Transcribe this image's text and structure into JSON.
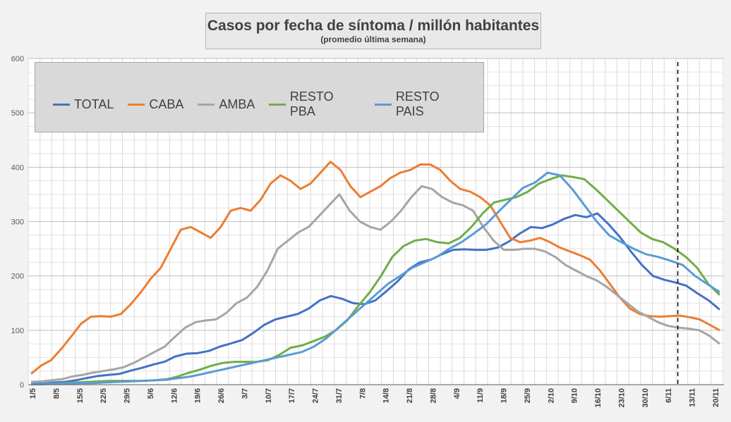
{
  "chart_data": {
    "type": "line",
    "title": "Casos por fecha de síntoma / millón habitantes",
    "subtitle": "(promedio última semana)",
    "ylim": [
      0,
      600
    ],
    "y_ticks": [
      0,
      100,
      200,
      300,
      400,
      500,
      600
    ],
    "x_tick_labels": [
      "1/5",
      "8/5",
      "15/5",
      "22/5",
      "29/5",
      "5/6",
      "12/6",
      "19/6",
      "26/6",
      "3/7",
      "10/7",
      "17/7",
      "24/7",
      "31/7",
      "7/8",
      "14/8",
      "21/8",
      "28/8",
      "4/9",
      "11/9",
      "18/9",
      "25/9",
      "2/10",
      "9/10",
      "16/10",
      "23/10",
      "30/10",
      "6/11",
      "13/11",
      "20/11"
    ],
    "grid": true,
    "legend_position": "top-left",
    "vertical_marker_label_index": 27.4,
    "series": [
      {
        "name": "TOTAL",
        "color": "#4472c4",
        "values": [
          2,
          2,
          4,
          5,
          8,
          12,
          16,
          18,
          20,
          26,
          31,
          37,
          42,
          52,
          57,
          58,
          62,
          70,
          76,
          82,
          95,
          110,
          120,
          125,
          130,
          140,
          155,
          163,
          158,
          150,
          148,
          155,
          172,
          190,
          212,
          225,
          230,
          240,
          248,
          249,
          248,
          248,
          252,
          263,
          278,
          290,
          288,
          295,
          305,
          312,
          308,
          315,
          295,
          272,
          245,
          220,
          200,
          193,
          188,
          182,
          168,
          155,
          138
        ]
      },
      {
        "name": "CABA",
        "color": "#ed7d31",
        "values": [
          20,
          35,
          45,
          65,
          88,
          112,
          125,
          126,
          125,
          130,
          148,
          170,
          195,
          215,
          250,
          285,
          290,
          280,
          270,
          290,
          320,
          325,
          320,
          340,
          370,
          385,
          375,
          360,
          370,
          390,
          410,
          395,
          365,
          345,
          355,
          365,
          380,
          390,
          395,
          405,
          405,
          395,
          375,
          360,
          355,
          345,
          330,
          300,
          270,
          262,
          265,
          270,
          262,
          252,
          245,
          238,
          230,
          210,
          185,
          160,
          140,
          130,
          126,
          125,
          126,
          127,
          124,
          120,
          110,
          100
        ]
      },
      {
        "name": "AMBA",
        "color": "#a5a5a5",
        "values": [
          5,
          6,
          8,
          10,
          15,
          18,
          22,
          25,
          28,
          32,
          40,
          50,
          60,
          70,
          88,
          105,
          115,
          118,
          120,
          132,
          150,
          160,
          180,
          210,
          250,
          265,
          280,
          290,
          310,
          330,
          350,
          320,
          300,
          290,
          285,
          300,
          320,
          345,
          365,
          360,
          345,
          335,
          330,
          320,
          290,
          265,
          248,
          248,
          250,
          250,
          245,
          235,
          220,
          210,
          200,
          192,
          180,
          165,
          150,
          135,
          125,
          115,
          108,
          105,
          103,
          100,
          90,
          75
        ]
      },
      {
        "name": "RESTO PBA",
        "color": "#70ad47",
        "values": [
          1,
          1,
          2,
          3,
          4,
          5,
          6,
          7,
          7,
          7,
          7,
          8,
          10,
          15,
          22,
          28,
          35,
          40,
          42,
          42,
          42,
          45,
          55,
          68,
          72,
          80,
          88,
          100,
          118,
          145,
          170,
          200,
          235,
          255,
          265,
          268,
          262,
          260,
          270,
          290,
          315,
          335,
          340,
          345,
          355,
          370,
          378,
          385,
          382,
          378,
          360,
          340,
          320,
          300,
          280,
          268,
          262,
          250,
          235,
          215,
          185,
          165
        ]
      },
      {
        "name": "RESTO PAIS",
        "color": "#5b9bd5",
        "values": [
          1,
          1,
          2,
          2,
          3,
          3,
          4,
          5,
          6,
          7,
          8,
          9,
          12,
          15,
          20,
          25,
          30,
          35,
          40,
          45,
          50,
          55,
          60,
          70,
          85,
          105,
          125,
          145,
          165,
          185,
          200,
          215,
          225,
          235,
          250,
          262,
          278,
          295,
          318,
          340,
          362,
          372,
          390,
          385,
          360,
          330,
          300,
          275,
          262,
          250,
          240,
          235,
          228,
          220,
          200,
          185,
          170
        ]
      }
    ]
  }
}
